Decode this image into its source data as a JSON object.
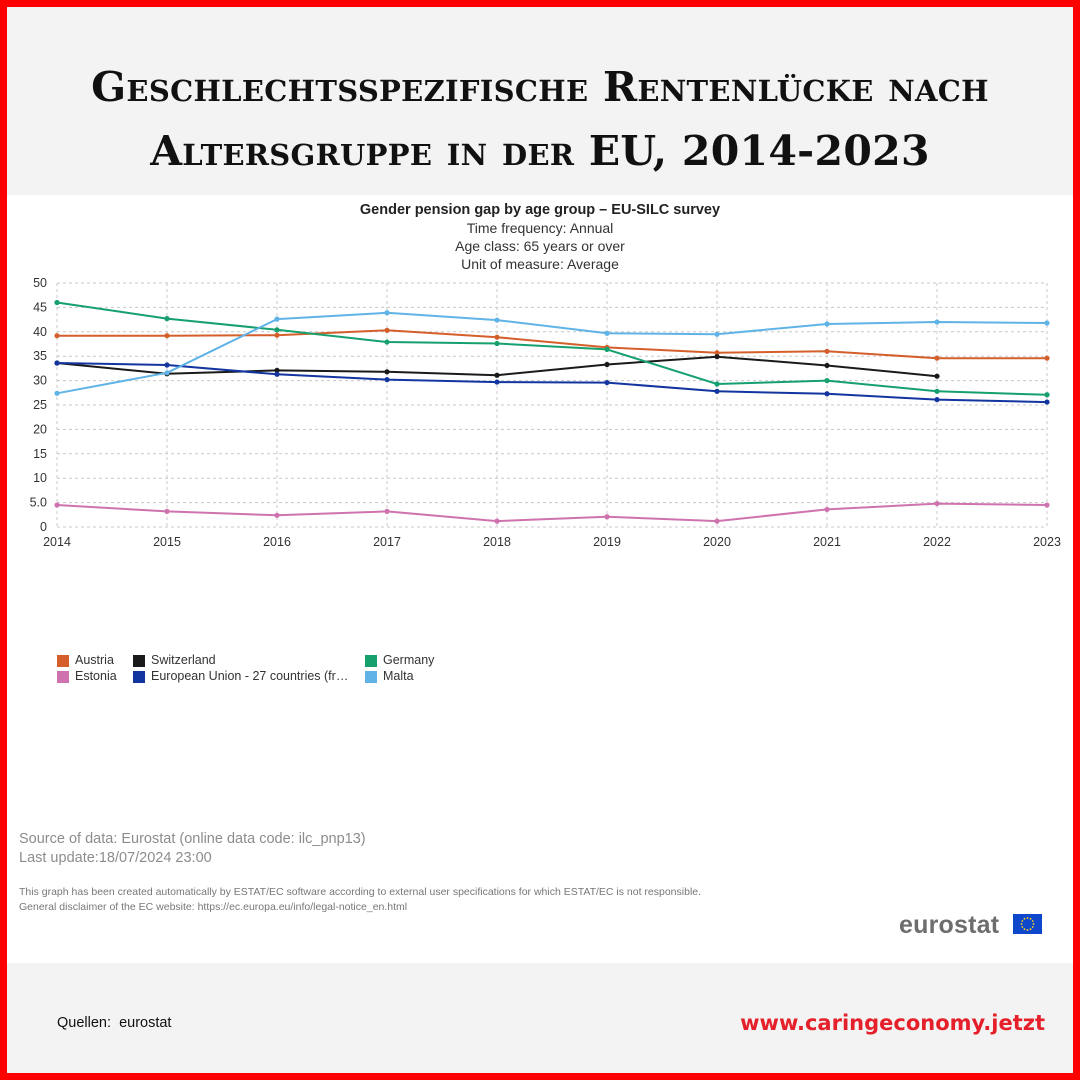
{
  "page": {
    "title_line1": "Geschlechtsspezifische Rentenlücke nach",
    "title_line2": "Altersgruppe  in der EU, 2014-2023",
    "sources": "Quellen:  eurostat",
    "website": "www.caringeconomy.jetzt",
    "colors": {
      "border": "#ff0000",
      "background": "#f3f3f3",
      "website": "#e5202a"
    }
  },
  "chart_data": {
    "type": "line",
    "title": "Gender pension gap by age group – EU-SILC survey",
    "subtitles": [
      "Time frequency: Annual",
      "Age class: 65 years or over",
      "Unit of measure: Average"
    ],
    "x": [
      "2014",
      "2015",
      "2016",
      "2017",
      "2018",
      "2019",
      "2020",
      "2021",
      "2022",
      "2023"
    ],
    "ylim": [
      0,
      50
    ],
    "yticks": [
      "0",
      "5.0",
      "10",
      "15",
      "20",
      "25",
      "30",
      "35",
      "40",
      "45",
      "50"
    ],
    "grid": true,
    "legend_position": "bottom-left",
    "series": [
      {
        "name": "Austria",
        "color": "#d45f2b",
        "values": [
          39.2,
          39.2,
          39.3,
          40.3,
          38.9,
          36.8,
          35.7,
          36.0,
          34.6,
          34.6
        ]
      },
      {
        "name": "Switzerland",
        "color": "#1a1a1a",
        "values": [
          33.6,
          31.4,
          32.1,
          31.8,
          31.1,
          33.3,
          34.9,
          33.1,
          30.9,
          null
        ]
      },
      {
        "name": "Germany",
        "color": "#15a06e",
        "values": [
          46.0,
          42.7,
          40.4,
          37.9,
          37.6,
          36.4,
          29.3,
          30.0,
          27.8,
          27.1
        ]
      },
      {
        "name": "Estonia",
        "color": "#cf73ae",
        "values": [
          4.5,
          3.2,
          2.4,
          3.2,
          1.2,
          2.1,
          1.2,
          3.6,
          4.8,
          4.5
        ]
      },
      {
        "name": "European Union - 27 countries (fr…",
        "color": "#1235a0",
        "values": [
          33.6,
          33.2,
          31.3,
          30.2,
          29.7,
          29.6,
          27.8,
          27.3,
          26.1,
          25.6
        ]
      },
      {
        "name": "Malta",
        "color": "#5fb3e6",
        "values": [
          27.4,
          31.6,
          42.6,
          43.9,
          42.4,
          39.7,
          39.5,
          41.6,
          42.0,
          41.8
        ]
      }
    ],
    "source_lines": [
      "Source of data: Eurostat (online data code: ilc_pnp13)",
      "Last update:18/07/2024 23:00"
    ],
    "disclaimer_lines": [
      "This graph has been created automatically by ESTAT/EC software according to external user specifications for which ESTAT/EC is not responsible.",
      "General disclaimer of the EC website: https://ec.europa.eu/info/legal-notice_en.html"
    ],
    "logo_text": "eurostat"
  }
}
